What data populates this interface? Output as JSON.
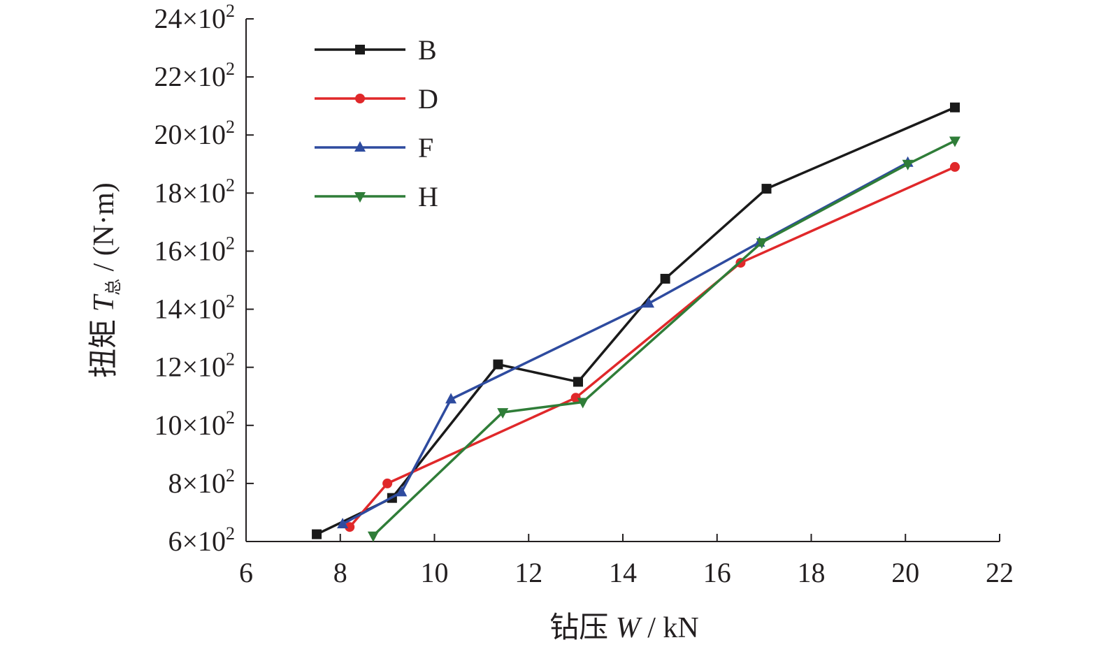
{
  "chart_data": {
    "type": "line",
    "xlabel": {
      "prefix": "钻压 ",
      "var": "W",
      "suffix": " / kN"
    },
    "ylabel": {
      "prefix": "扭矩 ",
      "var": "T",
      "sub": "总",
      "suffix": " / (N·m)"
    },
    "xlim": [
      6,
      22
    ],
    "ylim": [
      600,
      2400
    ],
    "x_ticks": [
      6,
      8,
      10,
      12,
      14,
      16,
      18,
      20,
      22
    ],
    "x_tick_labels": [
      "6",
      "8",
      "10",
      "12",
      "14",
      "16",
      "18",
      "20",
      "22"
    ],
    "y_ticks": [
      600,
      800,
      1000,
      1200,
      1400,
      1600,
      1800,
      2000,
      2200,
      2400
    ],
    "y_tick_labels": [
      {
        "mant": "6×10",
        "exp": "2"
      },
      {
        "mant": "8×10",
        "exp": "2"
      },
      {
        "mant": "10×10",
        "exp": "2"
      },
      {
        "mant": "12×10",
        "exp": "2"
      },
      {
        "mant": "14×10",
        "exp": "2"
      },
      {
        "mant": "16×10",
        "exp": "2"
      },
      {
        "mant": "18×10",
        "exp": "2"
      },
      {
        "mant": "20×10",
        "exp": "2"
      },
      {
        "mant": "22×10",
        "exp": "2"
      },
      {
        "mant": "24×10",
        "exp": "2"
      }
    ],
    "grid": false,
    "legend_position": "top-left",
    "series": [
      {
        "name": "B",
        "color": "#1a1a1a",
        "marker": "square",
        "x": [
          7.5,
          9.1,
          11.35,
          13.05,
          14.9,
          17.05,
          21.05
        ],
        "y": [
          625,
          750,
          1210,
          1150,
          1505,
          1815,
          2095
        ]
      },
      {
        "name": "D",
        "color": "#e0282a",
        "marker": "circle",
        "x": [
          8.2,
          9.0,
          13.0,
          16.5,
          21.05
        ],
        "y": [
          650,
          800,
          1095,
          1560,
          1890
        ]
      },
      {
        "name": "F",
        "color": "#2e4b9f",
        "marker": "triangle-up",
        "x": [
          8.05,
          9.3,
          10.35,
          14.55,
          16.9,
          20.05
        ],
        "y": [
          660,
          770,
          1090,
          1420,
          1630,
          1905
        ]
      },
      {
        "name": "H",
        "color": "#2f7d38",
        "marker": "triangle-down",
        "x": [
          8.7,
          11.45,
          13.15,
          16.95,
          20.05,
          21.05
        ],
        "y": [
          620,
          1045,
          1080,
          1630,
          1900,
          1980
        ]
      }
    ]
  }
}
